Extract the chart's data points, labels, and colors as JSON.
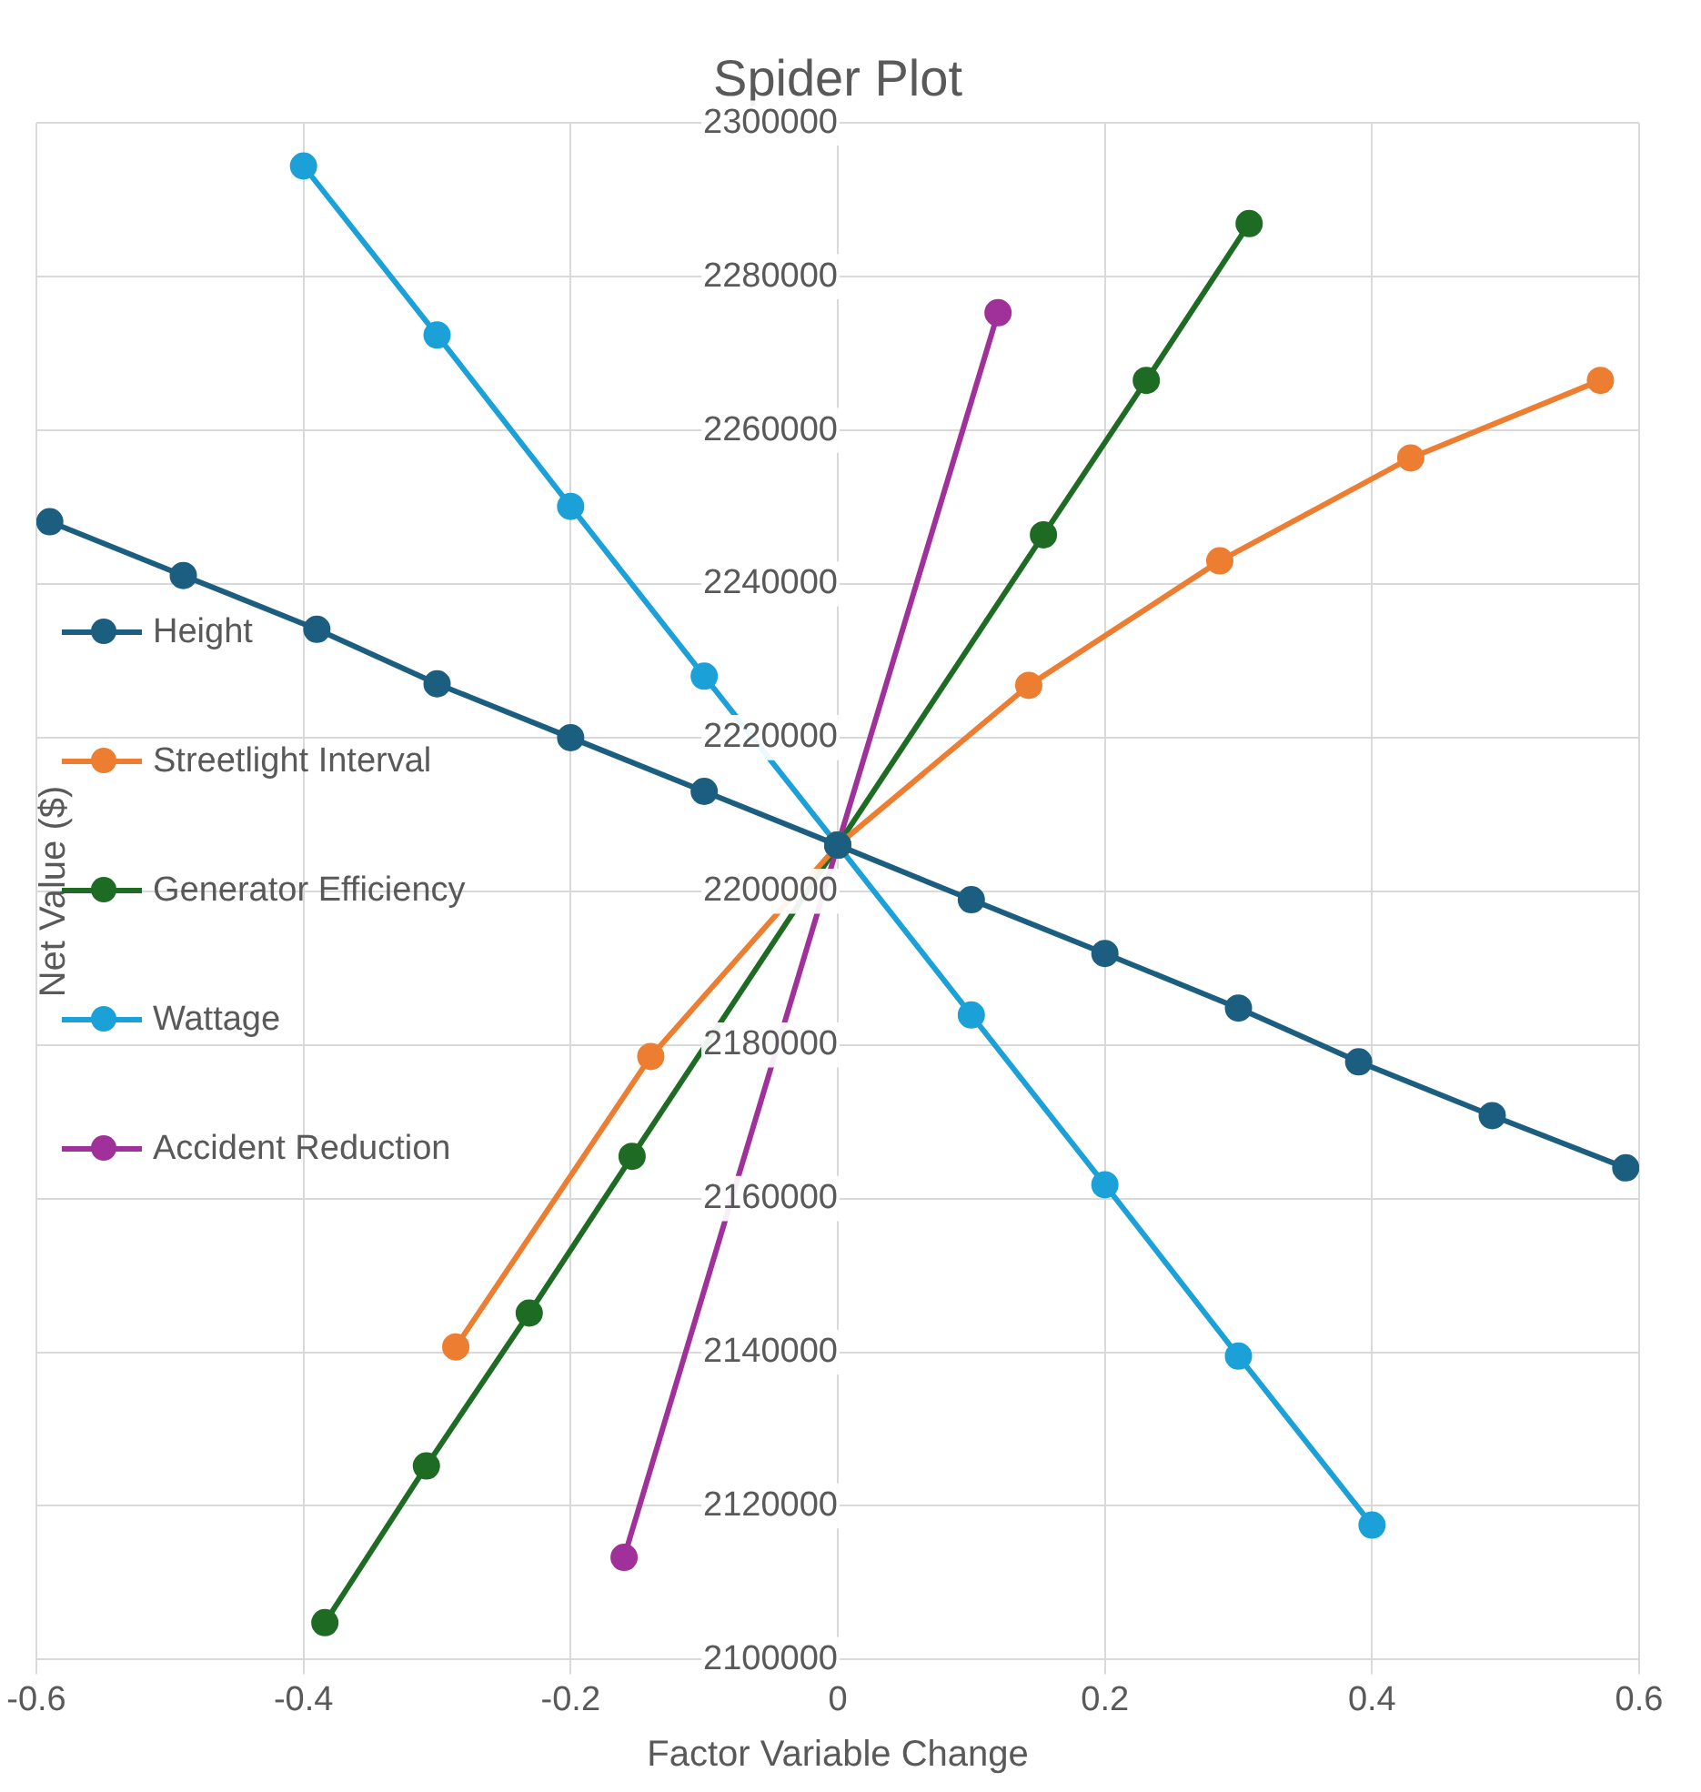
{
  "chart_data": {
    "type": "line",
    "title": "Spider Plot",
    "xlabel": "Factor Variable Change",
    "ylabel": "Net Value ($)",
    "xlim": [
      -0.6,
      0.6
    ],
    "xticks": [
      -0.6,
      -0.4,
      -0.2,
      0,
      0.2,
      0.4,
      0.6
    ],
    "ylim": [
      2100000,
      2300000
    ],
    "yticks": [
      2100000,
      2120000,
      2140000,
      2160000,
      2180000,
      2200000,
      2220000,
      2240000,
      2260000,
      2280000,
      2300000
    ],
    "grid": true,
    "legend": "left",
    "marker": "circle",
    "line_style": "solid",
    "series": [
      {
        "name": "Height",
        "color": "#1b5e80",
        "x": [
          -0.59,
          -0.49,
          -0.39,
          -0.3,
          -0.2,
          -0.1,
          0,
          0.1,
          0.2,
          0.3,
          0.39,
          0.49,
          0.59
        ],
        "values": [
          2248100,
          2241100,
          2234100,
          2227000,
          2220000,
          2213000,
          2206000,
          2198900,
          2191900,
          2184800,
          2177800,
          2170800,
          2164000
        ]
      },
      {
        "name": "Streetlight Interval",
        "color": "#ed7d31",
        "x": [
          -0.286,
          -0.14,
          0,
          0.143,
          0.286,
          0.429,
          0.571
        ],
        "values": [
          2140700,
          2178500,
          2206000,
          2226800,
          2243000,
          2256400,
          2266500
        ]
      },
      {
        "name": "Generator Efficiency",
        "color": "#1e6b24",
        "x": [
          -0.384,
          -0.308,
          -0.231,
          -0.154,
          0,
          0.154,
          0.231,
          0.308
        ],
        "values": [
          2104800,
          2125200,
          2145100,
          2165500,
          2206000,
          2246400,
          2266500,
          2286900
        ]
      },
      {
        "name": "Wattage",
        "color": "#1ba1d8",
        "x": [
          -0.4,
          -0.3,
          -0.2,
          -0.1,
          0,
          0.1,
          0.2,
          0.3,
          0.4
        ],
        "values": [
          2294400,
          2272400,
          2250100,
          2228000,
          2206000,
          2183900,
          2161800,
          2139500,
          2117500
        ]
      },
      {
        "name": "Accident Reduction",
        "color": "#a0309a",
        "x": [
          -0.16,
          0,
          0.12
        ],
        "values": [
          2113300,
          2206000,
          2275300
        ]
      }
    ]
  }
}
